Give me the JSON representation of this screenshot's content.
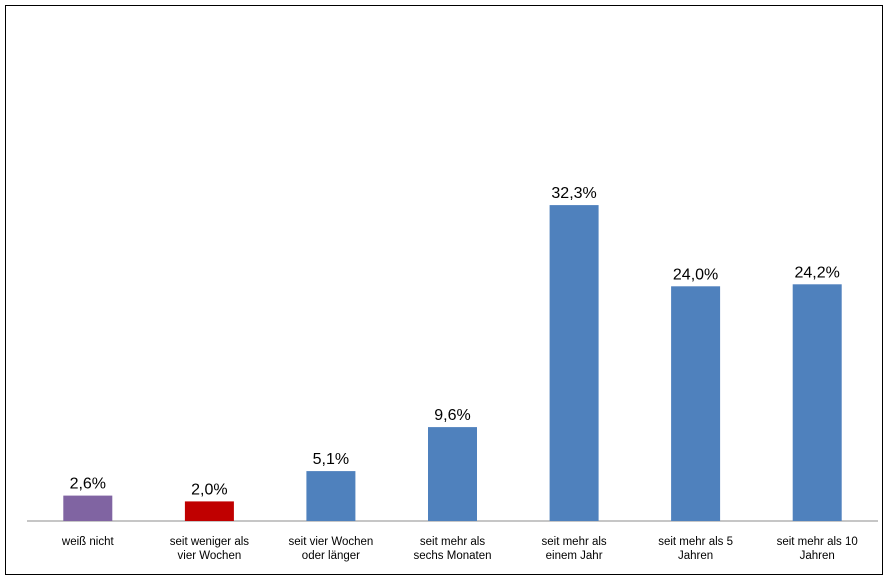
{
  "chart_data": {
    "type": "bar",
    "title": "",
    "xlabel": "",
    "ylabel": "",
    "ylim": [
      0,
      35
    ],
    "grid": false,
    "legend": "none",
    "categories": [
      [
        "weiß nicht"
      ],
      [
        "seit weniger als",
        "vier Wochen"
      ],
      [
        "seit vier Wochen",
        "oder länger"
      ],
      [
        "seit mehr als",
        "sechs Monaten"
      ],
      [
        "seit mehr als",
        "einem Jahr"
      ],
      [
        "seit mehr als 5",
        "Jahren"
      ],
      [
        "seit mehr als 10",
        "Jahren"
      ]
    ],
    "values": [
      2.6,
      2.0,
      5.1,
      9.6,
      32.3,
      24.0,
      24.2
    ],
    "value_labels": [
      "2,6%",
      "2,0%",
      "5,1%",
      "9,6%",
      "32,3%",
      "24,0%",
      "24,2%"
    ],
    "colors": [
      "#8064a2",
      "#c00000",
      "#4f81bd",
      "#4f81bd",
      "#4f81bd",
      "#4f81bd",
      "#4f81bd"
    ]
  }
}
